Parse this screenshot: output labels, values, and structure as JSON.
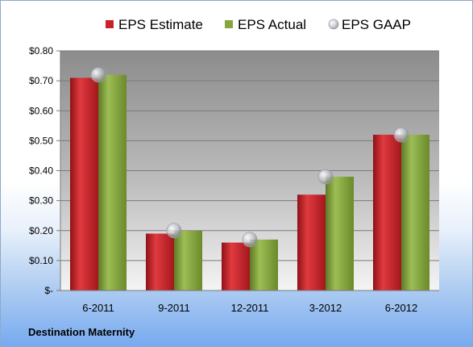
{
  "footer": {
    "company": "Destination Maternity"
  },
  "colors": {
    "estimate": "#c8232a",
    "actual": "#86a63d",
    "gaap": "#b9bcc2",
    "plot_bg_top": "#8c8c8c",
    "plot_bg_bottom": "#f2f2f2"
  },
  "chart_data": {
    "type": "bar",
    "categories": [
      "6-2011",
      "9-2011",
      "12-2011",
      "3-2012",
      "6-2012"
    ],
    "series": [
      {
        "name": "EPS Estimate",
        "kind": "bar",
        "values": [
          0.71,
          0.19,
          0.16,
          0.32,
          0.52
        ]
      },
      {
        "name": "EPS Actual",
        "kind": "bar",
        "values": [
          0.72,
          0.2,
          0.17,
          0.38,
          0.52
        ]
      },
      {
        "name": "EPS GAAP",
        "kind": "marker",
        "values": [
          0.72,
          0.2,
          0.17,
          0.38,
          0.52
        ]
      }
    ],
    "ylim": [
      0,
      0.8
    ],
    "yticks": [
      0,
      0.1,
      0.2,
      0.3,
      0.4,
      0.5,
      0.6,
      0.7,
      0.8
    ],
    "ytick_labels": [
      "$-",
      "$0.10",
      "$0.20",
      "$0.30",
      "$0.40",
      "$0.50",
      "$0.60",
      "$0.70",
      "$0.80"
    ],
    "grid": true,
    "legend": "top"
  }
}
